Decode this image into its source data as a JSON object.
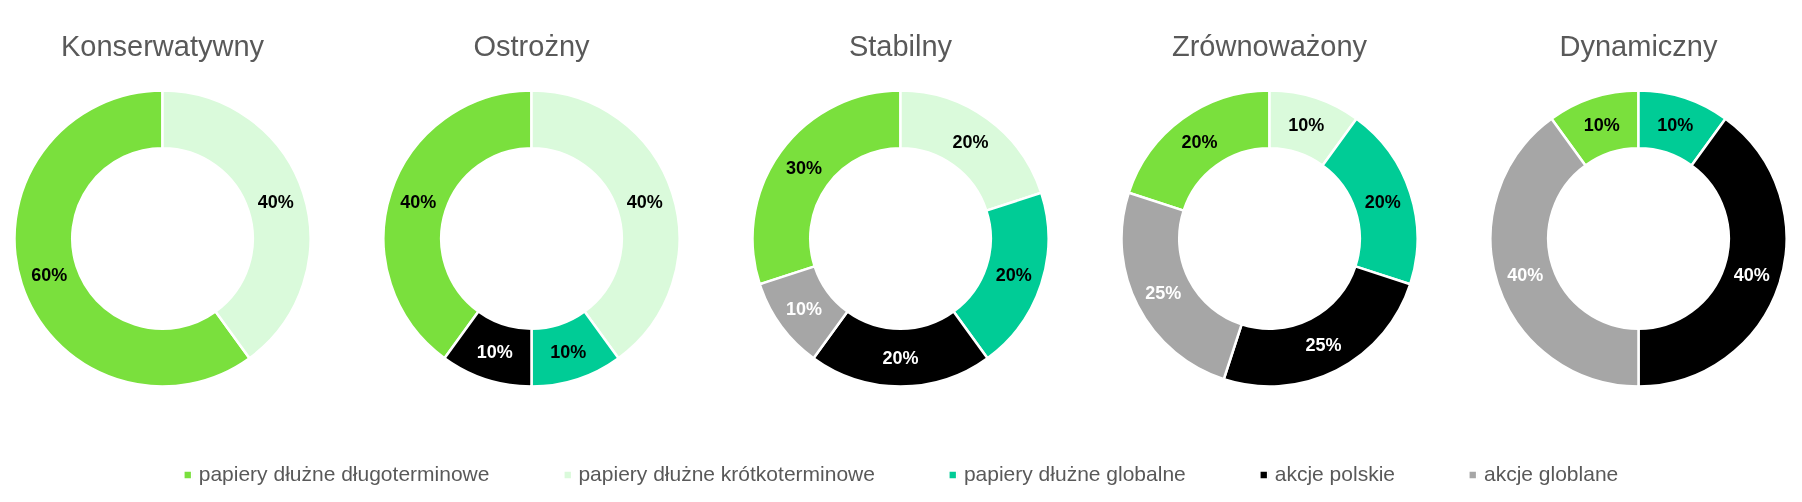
{
  "chart_data": {
    "type": "donut",
    "categories": [
      "papiery dłużne długoterminowe",
      "papiery dłużne krótkoterminowe",
      "papiery dłużne globalne",
      "akcje polskie",
      "akcje globlane"
    ],
    "colors": [
      "#7ae03d",
      "#dafadb",
      "#00cc96",
      "#000000",
      "#a6a6a6"
    ],
    "legend": "bottom",
    "series": [
      {
        "name": "Konserwatywny",
        "values": [
          60,
          40,
          0,
          0,
          0
        ],
        "value_labels": [
          "60%",
          "40%",
          null,
          null,
          null
        ]
      },
      {
        "name": "Ostrożny",
        "values": [
          40,
          40,
          10,
          10,
          0
        ],
        "value_labels": [
          "40%",
          "40%",
          "10%",
          "10%",
          null
        ]
      },
      {
        "name": "Stabilny",
        "values": [
          30,
          20,
          20,
          20,
          10
        ],
        "value_labels": [
          "30%",
          "20%",
          "20%",
          "20%",
          "10%"
        ]
      },
      {
        "name": "Zrównoważony",
        "values": [
          20,
          10,
          20,
          25,
          25
        ],
        "value_labels": [
          "20%",
          "10%",
          "20%",
          "25%",
          "25%"
        ]
      },
      {
        "name": "Dynamiczny",
        "values": [
          10,
          0,
          10,
          40,
          40
        ],
        "value_labels": [
          "10%",
          null,
          "10%",
          "40%",
          "40%"
        ]
      }
    ]
  }
}
